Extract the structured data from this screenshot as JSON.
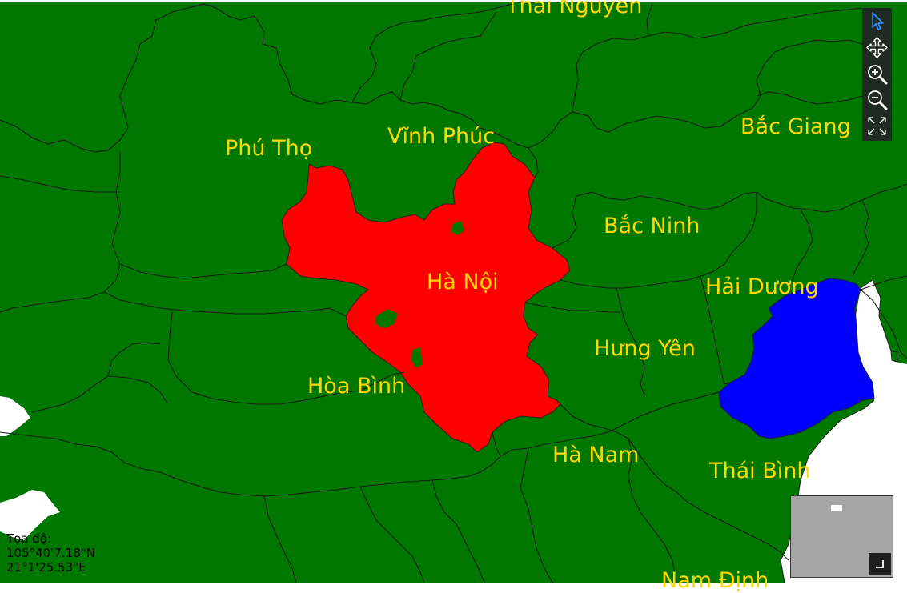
{
  "map": {
    "labels": {
      "thai_nguyen": "Thái Nguyên",
      "phu_tho": "Phú Thọ",
      "vinh_phuc": "Vĩnh Phúc",
      "bac_giang": "Bắc Giang",
      "bac_ninh": "Bắc Ninh",
      "ha_noi": "Hà Nội",
      "hai_duong": "Hải Dương",
      "hung_yen": "Hưng Yên",
      "hoa_binh": "Hòa Bình",
      "ha_nam": "Hà Nam",
      "thai_binh": "Thái Bình",
      "nam_dinh": "Nam Định"
    },
    "colors": {
      "land": "#007800",
      "selected": "#ff0000",
      "highlight": "#0000ff",
      "sea": "#ffffff",
      "label": "#ffd800",
      "border": "#1a1a1a"
    }
  },
  "toolbar": {
    "tools": [
      "select-arrow-icon",
      "pan-icon",
      "zoom-in-icon",
      "zoom-out-icon",
      "full-extent-icon"
    ]
  },
  "coordinates": {
    "title": "Tọa độ:",
    "lat": "105°40'7.18\"N",
    "lon": "21°1'25.53\"E"
  }
}
